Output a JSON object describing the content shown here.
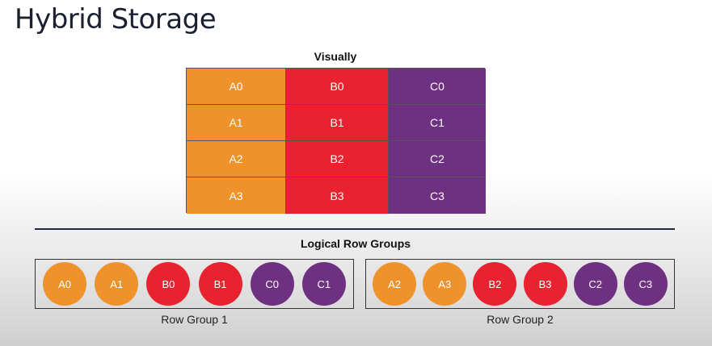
{
  "title": "Hybrid Storage",
  "visually_label": "Visually",
  "logical_label": "Logical Row Groups",
  "colors": {
    "a": "#f0922b",
    "b": "#e8232f",
    "c": "#6e3080"
  },
  "table": {
    "rows": [
      [
        "A0",
        "B0",
        "C0"
      ],
      [
        "A1",
        "B1",
        "C1"
      ],
      [
        "A2",
        "B2",
        "C2"
      ],
      [
        "A3",
        "B3",
        "C3"
      ]
    ]
  },
  "row_groups": [
    {
      "label": "Row Group 1",
      "items": [
        {
          "text": "A0",
          "column": "a"
        },
        {
          "text": "A1",
          "column": "a"
        },
        {
          "text": "B0",
          "column": "b"
        },
        {
          "text": "B1",
          "column": "b"
        },
        {
          "text": "C0",
          "column": "c"
        },
        {
          "text": "C1",
          "column": "c"
        }
      ]
    },
    {
      "label": "Row Group 2",
      "items": [
        {
          "text": "A2",
          "column": "a"
        },
        {
          "text": "A3",
          "column": "a"
        },
        {
          "text": "B2",
          "column": "b"
        },
        {
          "text": "B3",
          "column": "b"
        },
        {
          "text": "C2",
          "column": "c"
        },
        {
          "text": "C3",
          "column": "c"
        }
      ]
    }
  ]
}
